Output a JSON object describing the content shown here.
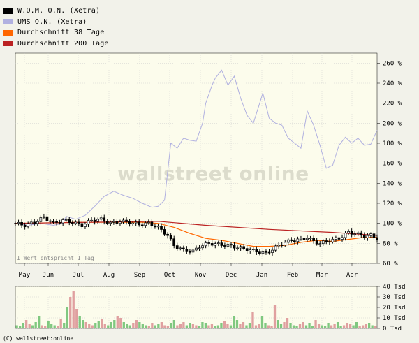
{
  "legend": [
    {
      "label": "W.O.M. O.N. (Xetra)",
      "color": "#000000"
    },
    {
      "label": "UMS O.N. (Xetra)",
      "color": "#b0b0e0"
    },
    {
      "label": "Durchschnitt 38 Tage",
      "color": "#ff6600"
    },
    {
      "label": "Durchschnitt 200 Tage",
      "color": "#bb2222"
    }
  ],
  "watermark": "wallstreet online",
  "note": "1 Wert entspricht 1 Tag",
  "copyright": "(C) wallstreet:online",
  "colors": {
    "background": "#fcfcec",
    "grid": "#cccccc",
    "volume_up": "#80c880",
    "volume_down": "#e0a0a0"
  },
  "chart_data": [
    {
      "type": "line",
      "y_unit": "%",
      "ylim": [
        60,
        270
      ],
      "yticks": [
        60,
        80,
        100,
        120,
        140,
        160,
        180,
        200,
        220,
        240,
        260
      ],
      "ytick_labels": [
        "60 %",
        "80 %",
        "100 %",
        "120 %",
        "140 %",
        "160 %",
        "180 %",
        "200 %",
        "220 %",
        "240 %",
        "260 %"
      ],
      "x_labels": [
        "May",
        "Jun",
        "Jul",
        "Aug",
        "Sep",
        "Oct",
        "Nov",
        "Dec",
        "Jan",
        "Feb",
        "Mar",
        "Apr"
      ],
      "grid": true,
      "series": [
        {
          "name": "W.O.M. O.N. (Xetra)",
          "style": "candlestick",
          "color": "#000000",
          "values": [
            [
              0,
              100
            ],
            [
              3,
              98
            ],
            [
              6,
              101
            ],
            [
              9,
              106
            ],
            [
              12,
              100
            ],
            [
              15,
              103
            ],
            [
              18,
              101
            ],
            [
              21,
              98
            ],
            [
              24,
              103
            ],
            [
              27,
              104
            ],
            [
              30,
              100
            ],
            [
              33,
              102
            ],
            [
              36,
              101
            ],
            [
              39,
              99
            ],
            [
              42,
              100
            ],
            [
              45,
              96
            ],
            [
              48,
              88
            ],
            [
              50,
              78
            ],
            [
              53,
              73
            ],
            [
              56,
              72
            ],
            [
              58,
              77
            ],
            [
              61,
              80
            ],
            [
              64,
              79
            ],
            [
              67,
              78
            ],
            [
              70,
              76
            ],
            [
              73,
              74
            ],
            [
              76,
              72
            ],
            [
              79,
              70
            ],
            [
              82,
              76
            ],
            [
              84,
              80
            ],
            [
              87,
              83
            ],
            [
              90,
              84
            ],
            [
              92,
              86
            ],
            [
              94,
              82
            ],
            [
              96,
              80
            ],
            [
              99,
              83
            ],
            [
              102,
              85
            ],
            [
              105,
              91
            ],
            [
              107,
              90
            ],
            [
              110,
              87
            ],
            [
              112,
              88
            ],
            [
              114,
              85
            ]
          ]
        },
        {
          "name": "UMS O.N. (Xetra)",
          "color": "#b0b0e0",
          "values": [
            [
              0,
              100
            ],
            [
              4,
              98
            ],
            [
              8,
              100
            ],
            [
              12,
              98
            ],
            [
              15,
              100
            ],
            [
              16,
              107
            ],
            [
              19,
              104
            ],
            [
              22,
              108
            ],
            [
              25,
              117
            ],
            [
              28,
              127
            ],
            [
              31,
              132
            ],
            [
              34,
              128
            ],
            [
              37,
              125
            ],
            [
              40,
              120
            ],
            [
              43,
              116
            ],
            [
              45,
              117
            ],
            [
              47,
              123
            ],
            [
              49,
              180
            ],
            [
              51,
              175
            ],
            [
              53,
              185
            ],
            [
              55,
              183
            ],
            [
              57,
              182
            ],
            [
              59,
              200
            ],
            [
              60,
              220
            ],
            [
              62,
              238
            ],
            [
              63,
              245
            ],
            [
              65,
              253
            ],
            [
              67,
              238
            ],
            [
              69,
              247
            ],
            [
              71,
              225
            ],
            [
              73,
              208
            ],
            [
              75,
              200
            ],
            [
              77,
              220
            ],
            [
              78,
              230
            ],
            [
              80,
              205
            ],
            [
              82,
              200
            ],
            [
              84,
              198
            ],
            [
              86,
              185
            ],
            [
              88,
              180
            ],
            [
              90,
              175
            ],
            [
              92,
              212
            ],
            [
              94,
              198
            ],
            [
              96,
              178
            ],
            [
              98,
              155
            ],
            [
              100,
              158
            ],
            [
              102,
              178
            ],
            [
              104,
              186
            ],
            [
              106,
              180
            ],
            [
              108,
              185
            ],
            [
              110,
              178
            ],
            [
              112,
              179
            ],
            [
              114,
              193
            ]
          ]
        },
        {
          "name": "Durchschnitt 38 Tage",
          "color": "#ff6600",
          "values": [
            [
              0,
              100
            ],
            [
              20,
              101
            ],
            [
              40,
              101
            ],
            [
              45,
              100
            ],
            [
              50,
              96
            ],
            [
              55,
              90
            ],
            [
              60,
              85
            ],
            [
              65,
              83
            ],
            [
              70,
              80
            ],
            [
              75,
              77
            ],
            [
              80,
              77
            ],
            [
              85,
              78
            ],
            [
              90,
              81
            ],
            [
              95,
              83
            ],
            [
              100,
              82
            ],
            [
              105,
              84
            ],
            [
              110,
              86
            ],
            [
              114,
              86
            ]
          ]
        },
        {
          "name": "Durchschnitt 200 Tage",
          "color": "#bb2222",
          "values": [
            [
              0,
              100
            ],
            [
              45,
              102
            ],
            [
              60,
              98
            ],
            [
              80,
              94
            ],
            [
              100,
              91
            ],
            [
              114,
              88
            ]
          ]
        }
      ]
    },
    {
      "type": "bar",
      "y_unit": "Tsd",
      "ylim": [
        0,
        40
      ],
      "yticks": [
        0,
        10,
        20,
        30,
        40
      ],
      "ytick_labels": [
        "0 Tsd",
        "10 Tsd",
        "20 Tsd",
        "30 Tsd",
        "40 Tsd"
      ],
      "series": [
        {
          "name": "Volume",
          "values": [
            3,
            2,
            5,
            8,
            4,
            3,
            6,
            12,
            3,
            2,
            7,
            4,
            3,
            2,
            9,
            5,
            20,
            30,
            36,
            18,
            12,
            8,
            6,
            4,
            3,
            5,
            7,
            9,
            4,
            3,
            6,
            8,
            12,
            10,
            6,
            4,
            3,
            5,
            8,
            6,
            4,
            3,
            2,
            5,
            3,
            4,
            6,
            3,
            2,
            5,
            8,
            3,
            4,
            6,
            3,
            5,
            4,
            3,
            2,
            6,
            5,
            3,
            4,
            2,
            3,
            5,
            7,
            4,
            3,
            12,
            8,
            4,
            6,
            3,
            5,
            16,
            3,
            4,
            12,
            5,
            3,
            2,
            22,
            8,
            4,
            6,
            10,
            5,
            3,
            2,
            4,
            6,
            3,
            5,
            2,
            8,
            4,
            3,
            2,
            5,
            3,
            4,
            6,
            2,
            3,
            5,
            4,
            3,
            6,
            2,
            3,
            4,
            5,
            3,
            2
          ]
        }
      ]
    }
  ]
}
